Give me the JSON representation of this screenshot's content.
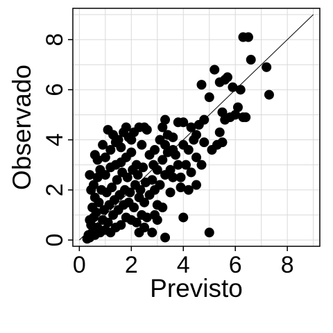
{
  "chart_data": {
    "type": "scatter",
    "xlabel": "Previsto",
    "ylabel": "Observado",
    "xlim": [
      -0.25,
      9.25
    ],
    "ylim": [
      -0.25,
      9.25
    ],
    "x_ticks": [
      0,
      2,
      4,
      6,
      8
    ],
    "y_ticks": [
      0,
      2,
      4,
      6,
      8
    ],
    "grid": true,
    "reference_line": {
      "from": [
        0,
        0
      ],
      "to": [
        9,
        9
      ]
    },
    "colors": {
      "points": "#000000",
      "grid": "#d9d9d9",
      "border": "#000000"
    },
    "series": [
      {
        "points": [
          [
            0.3,
            0.05
          ],
          [
            0.35,
            0.2
          ],
          [
            0.4,
            0.1
          ],
          [
            0.5,
            0.3
          ],
          [
            0.45,
            0.6
          ],
          [
            0.6,
            0.2
          ],
          [
            0.55,
            0.9
          ],
          [
            0.4,
            0.8
          ],
          [
            0.7,
            0.5
          ],
          [
            0.65,
            1.1
          ],
          [
            0.5,
            1.3
          ],
          [
            0.8,
            0.3
          ],
          [
            0.75,
            1.5
          ],
          [
            0.6,
            1.7
          ],
          [
            0.9,
            0.8
          ],
          [
            0.85,
            2.0
          ],
          [
            0.55,
            2.2
          ],
          [
            0.7,
            2.5
          ],
          [
            1.0,
            0.4
          ],
          [
            0.95,
            1.2
          ],
          [
            1.1,
            0.7
          ],
          [
            1.05,
            1.9
          ],
          [
            1.2,
            0.3
          ],
          [
            1.15,
            1.4
          ],
          [
            1.0,
            2.6
          ],
          [
            0.8,
            2.8
          ],
          [
            1.3,
            1.0
          ],
          [
            1.25,
            2.1
          ],
          [
            1.4,
            0.5
          ],
          [
            1.35,
            1.6
          ],
          [
            1.2,
            2.9
          ],
          [
            1.5,
            1.2
          ],
          [
            1.45,
            2.4
          ],
          [
            1.6,
            0.6
          ],
          [
            1.55,
            1.8
          ],
          [
            1.4,
            3.0
          ],
          [
            1.7,
            1.4
          ],
          [
            1.65,
            2.7
          ],
          [
            1.8,
            0.9
          ],
          [
            1.75,
            2.0
          ],
          [
            1.6,
            3.1
          ],
          [
            1.9,
            1.5
          ],
          [
            1.85,
            2.5
          ],
          [
            2.0,
            0.8
          ],
          [
            1.95,
            1.9
          ],
          [
            1.8,
            3.3
          ],
          [
            2.1,
            1.3
          ],
          [
            2.05,
            2.8
          ],
          [
            2.2,
            0.7
          ],
          [
            2.15,
            2.2
          ],
          [
            2.0,
            3.5
          ],
          [
            2.3,
            1.7
          ],
          [
            2.25,
            2.6
          ],
          [
            2.4,
            1.0
          ],
          [
            2.35,
            2.0
          ],
          [
            2.2,
            3.0
          ],
          [
            2.5,
            1.5
          ],
          [
            2.45,
            2.9
          ],
          [
            2.6,
            0.9
          ],
          [
            2.55,
            2.3
          ],
          [
            1.0,
            3.3
          ],
          [
            1.2,
            3.6
          ],
          [
            1.4,
            3.9
          ],
          [
            1.3,
            4.2
          ],
          [
            1.5,
            4.0
          ],
          [
            1.6,
            3.7
          ],
          [
            1.7,
            4.3
          ],
          [
            1.9,
            4.1
          ],
          [
            2.1,
            4.3
          ],
          [
            2.3,
            4.5
          ],
          [
            2.5,
            4.5
          ],
          [
            1.1,
            4.4
          ],
          [
            0.9,
            3.8
          ],
          [
            0.7,
            3.2
          ],
          [
            0.45,
            2.0
          ],
          [
            0.4,
            2.6
          ],
          [
            0.6,
            3.4
          ],
          [
            1.8,
            4.5
          ],
          [
            2.0,
            4.0
          ],
          [
            2.4,
            3.8
          ],
          [
            2.7,
            1.8
          ],
          [
            2.8,
            2.4
          ],
          [
            2.9,
            2.0
          ],
          [
            3.0,
            2.8
          ],
          [
            2.7,
            3.4
          ],
          [
            2.85,
            3.0
          ],
          [
            3.0,
            1.4
          ],
          [
            3.1,
            2.2
          ],
          [
            3.2,
            3.2
          ],
          [
            3.3,
            2.6
          ],
          [
            3.4,
            3.5
          ],
          [
            3.5,
            2.8
          ],
          [
            3.6,
            3.6
          ],
          [
            3.3,
            3.8
          ],
          [
            3.1,
            4.0
          ],
          [
            2.9,
            3.6
          ],
          [
            3.7,
            3.4
          ],
          [
            3.8,
            3.0
          ],
          [
            3.9,
            2.5
          ],
          [
            4.0,
            3.8
          ],
          [
            3.2,
            4.5
          ],
          [
            3.4,
            4.2
          ],
          [
            3.6,
            4.1
          ],
          [
            3.8,
            4.7
          ],
          [
            4.0,
            4.7
          ],
          [
            4.2,
            3.6
          ],
          [
            4.4,
            4.0
          ],
          [
            4.5,
            4.2
          ],
          [
            4.3,
            4.5
          ],
          [
            4.6,
            4.6
          ],
          [
            4.8,
            4.8
          ],
          [
            4.1,
            3.0
          ],
          [
            4.3,
            2.7
          ],
          [
            4.5,
            3.3
          ],
          [
            4.7,
            3.0
          ],
          [
            4.5,
            2.2
          ],
          [
            4.2,
            2.0
          ],
          [
            3.9,
            2.1
          ],
          [
            3.6,
            2.5
          ],
          [
            3.5,
            1.9
          ],
          [
            3.0,
            0.8
          ],
          [
            3.3,
            0.1
          ],
          [
            3.2,
            1.3
          ],
          [
            2.9,
            1.0
          ],
          [
            2.8,
            0.3
          ],
          [
            2.5,
            0.5
          ],
          [
            2.3,
            0.3
          ],
          [
            4.0,
            0.9
          ],
          [
            3.3,
            4.8
          ],
          [
            2.6,
            4.4
          ],
          [
            4.7,
            6.2
          ],
          [
            5.0,
            5.7
          ],
          [
            5.2,
            6.8
          ],
          [
            5.4,
            6.3
          ],
          [
            5.7,
            6.5
          ],
          [
            5.9,
            6.1
          ],
          [
            6.1,
            5.3
          ],
          [
            6.2,
            6.0
          ],
          [
            5.5,
            5.1
          ],
          [
            5.6,
            4.8
          ],
          [
            5.8,
            4.9
          ],
          [
            6.0,
            5.0
          ],
          [
            6.3,
            4.9
          ],
          [
            5.4,
            4.3
          ],
          [
            5.5,
            3.9
          ],
          [
            5.3,
            3.8
          ],
          [
            5.1,
            3.6
          ],
          [
            6.3,
            8.1
          ],
          [
            6.5,
            8.1
          ],
          [
            6.6,
            7.2
          ],
          [
            7.2,
            6.9
          ],
          [
            7.3,
            5.8
          ],
          [
            5.0,
            0.3
          ],
          [
            6.4,
            4.9
          ],
          [
            5.6,
            6.4
          ],
          [
            4.8,
            3.9
          ]
        ]
      }
    ]
  }
}
